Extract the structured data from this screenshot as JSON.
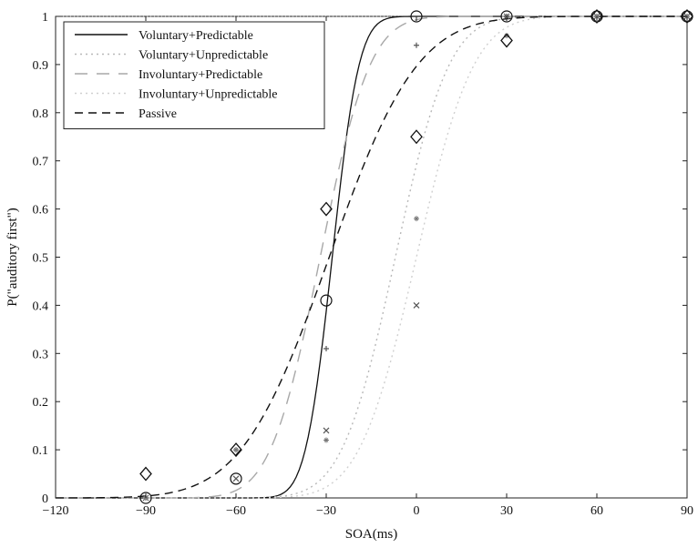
{
  "chart_data": {
    "type": "line",
    "xlabel": "SOA(ms)",
    "ylabel": "P(\"auditory first\")",
    "xlim": [
      -120,
      90
    ],
    "ylim": [
      0,
      1
    ],
    "x_ticks": [
      -120,
      -90,
      -60,
      -30,
      0,
      30,
      60,
      90
    ],
    "x_tick_labels": [
      "−120",
      "−90",
      "−60",
      "−30",
      "0",
      "30",
      "60",
      "90"
    ],
    "y_ticks": [
      0,
      0.1,
      0.2,
      0.3,
      0.4,
      0.5,
      0.6,
      0.7,
      0.8,
      0.9,
      1
    ],
    "y_tick_labels": [
      "0",
      "0.1",
      "0.2",
      "0.3",
      "0.4",
      "0.5",
      "0.6",
      "0.7",
      "0.8",
      "0.9",
      "1"
    ],
    "grid": false,
    "legend_position": "top-left",
    "series": [
      {
        "name": "Voluntary+Predictable",
        "line_style": "solid",
        "color": "#111111",
        "marker": "circle",
        "curve": {
          "mu": -28,
          "sigma": 7
        },
        "x": [
          -90,
          -60,
          -30,
          0,
          30,
          60,
          90
        ],
        "y": [
          0.0,
          0.04,
          0.41,
          1.0,
          1.0,
          1.0,
          1.0
        ]
      },
      {
        "name": "Voluntary+Unpredictable",
        "line_style": "dotted",
        "color": "#b8b8b8",
        "marker": "x",
        "curve": {
          "mu": -7,
          "sigma": 14
        },
        "x": [
          -90,
          -60,
          -30,
          0,
          30,
          60,
          90
        ],
        "y": [
          0.0,
          0.04,
          0.14,
          0.4,
          1.0,
          1.0,
          1.0
        ]
      },
      {
        "name": "Involuntary+Predictable",
        "line_style": "long-dash",
        "color": "#a8a8a8",
        "marker": "plus",
        "curve": {
          "mu": -32,
          "sigma": 13
        },
        "x": [
          -90,
          -60,
          -30,
          0,
          30,
          60,
          90
        ],
        "y": [
          0.0,
          0.1,
          0.31,
          0.94,
          1.0,
          1.0,
          1.0
        ]
      },
      {
        "name": "Involuntary+Unpredictable",
        "line_style": "dotted",
        "color": "#cfcfcf",
        "marker": "star",
        "curve": {
          "mu": 0,
          "sigma": 15
        },
        "x": [
          -90,
          -60,
          -30,
          0,
          30,
          60,
          90
        ],
        "y": [
          0.0,
          0.1,
          0.12,
          0.58,
          0.96,
          1.0,
          1.0
        ]
      },
      {
        "name": "Passive",
        "line_style": "dashed",
        "color": "#111111",
        "marker": "diamond",
        "curve": {
          "mu": -29,
          "sigma": 23
        },
        "x": [
          -90,
          -60,
          -30,
          0,
          30,
          60,
          90
        ],
        "y": [
          0.05,
          0.1,
          0.6,
          0.75,
          0.95,
          1.0,
          1.0
        ]
      }
    ]
  }
}
